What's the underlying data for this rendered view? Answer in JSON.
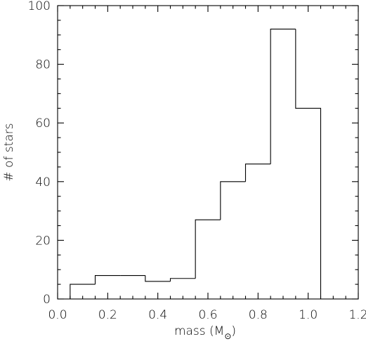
{
  "chart_data": {
    "type": "bar",
    "style": "step-histogram",
    "title": "",
    "xlabel_main": "mass (M",
    "xlabel_subscript": "⊙",
    "xlabel_close": ")",
    "ylabel": "# of stars",
    "xlim": [
      0.0,
      1.2
    ],
    "ylim": [
      0,
      100
    ],
    "x_ticks": [
      0.0,
      0.2,
      0.4,
      0.6,
      0.8,
      1.0,
      1.2
    ],
    "x_tick_labels": [
      "0.0",
      "0.2",
      "0.4",
      "0.6",
      "0.8",
      "1.0",
      "1.2"
    ],
    "y_ticks": [
      0,
      20,
      40,
      60,
      80,
      100
    ],
    "y_tick_labels": [
      "0",
      "20",
      "40",
      "60",
      "80",
      "100"
    ],
    "bin_edges": [
      0.05,
      0.15,
      0.25,
      0.35,
      0.45,
      0.55,
      0.65,
      0.75,
      0.85,
      0.95,
      1.05
    ],
    "values": [
      5,
      8,
      8,
      6,
      7,
      27,
      40,
      46,
      92,
      65
    ],
    "grid": false,
    "legend": "none",
    "line_color": "#000000"
  }
}
